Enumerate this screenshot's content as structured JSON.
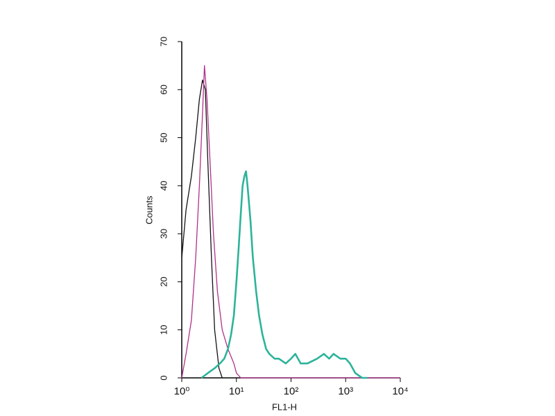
{
  "chart_data": {
    "type": "line",
    "xlabel": "FL1-H",
    "ylabel": "Counts",
    "xscale": "log",
    "xlim": [
      1,
      10000
    ],
    "ylim": [
      0,
      70
    ],
    "xticks": [
      {
        "value": 1,
        "label": "10⁰"
      },
      {
        "value": 10,
        "label": "10¹"
      },
      {
        "value": 100,
        "label": "10²"
      },
      {
        "value": 1000,
        "label": "10³"
      },
      {
        "value": 10000,
        "label": "10⁴"
      }
    ],
    "yticks": [
      0,
      10,
      20,
      30,
      40,
      50,
      60,
      70
    ],
    "series": [
      {
        "color": "#111111",
        "x": [
          1,
          1.2,
          1.5,
          1.8,
          2.1,
          2.4,
          2.7,
          3.0,
          3.5,
          4.0,
          4.8,
          5.5
        ],
        "values": [
          25,
          35,
          42,
          50,
          58,
          62,
          60,
          45,
          25,
          10,
          2,
          0
        ]
      },
      {
        "color": "#b0308a",
        "x": [
          1,
          1.2,
          1.5,
          1.8,
          2.1,
          2.4,
          2.6,
          2.9,
          3.3,
          3.8,
          4.5,
          5.5,
          7,
          9,
          10,
          12,
          100,
          10000
        ],
        "values": [
          0,
          5,
          12,
          25,
          40,
          55,
          65,
          58,
          45,
          30,
          18,
          10,
          6,
          3,
          1,
          0,
          0,
          0
        ]
      },
      {
        "color": "#2bb39a",
        "x": [
          2.3,
          3,
          4,
          5,
          6,
          7,
          8,
          9,
          10,
          11,
          12,
          13,
          14,
          15,
          16,
          18,
          20,
          23,
          26,
          30,
          35,
          40,
          50,
          60,
          80,
          100,
          120,
          150,
          200,
          300,
          400,
          500,
          600,
          800,
          1000,
          1200,
          1500,
          2000,
          2500
        ],
        "values": [
          0,
          1,
          2,
          3,
          4,
          6,
          9,
          13,
          20,
          27,
          34,
          40,
          42,
          43,
          40,
          33,
          25,
          18,
          13,
          9,
          6,
          5,
          4,
          4,
          3,
          4,
          5,
          3,
          3,
          4,
          5,
          4,
          5,
          4,
          4,
          3,
          1,
          0,
          0
        ]
      }
    ]
  }
}
